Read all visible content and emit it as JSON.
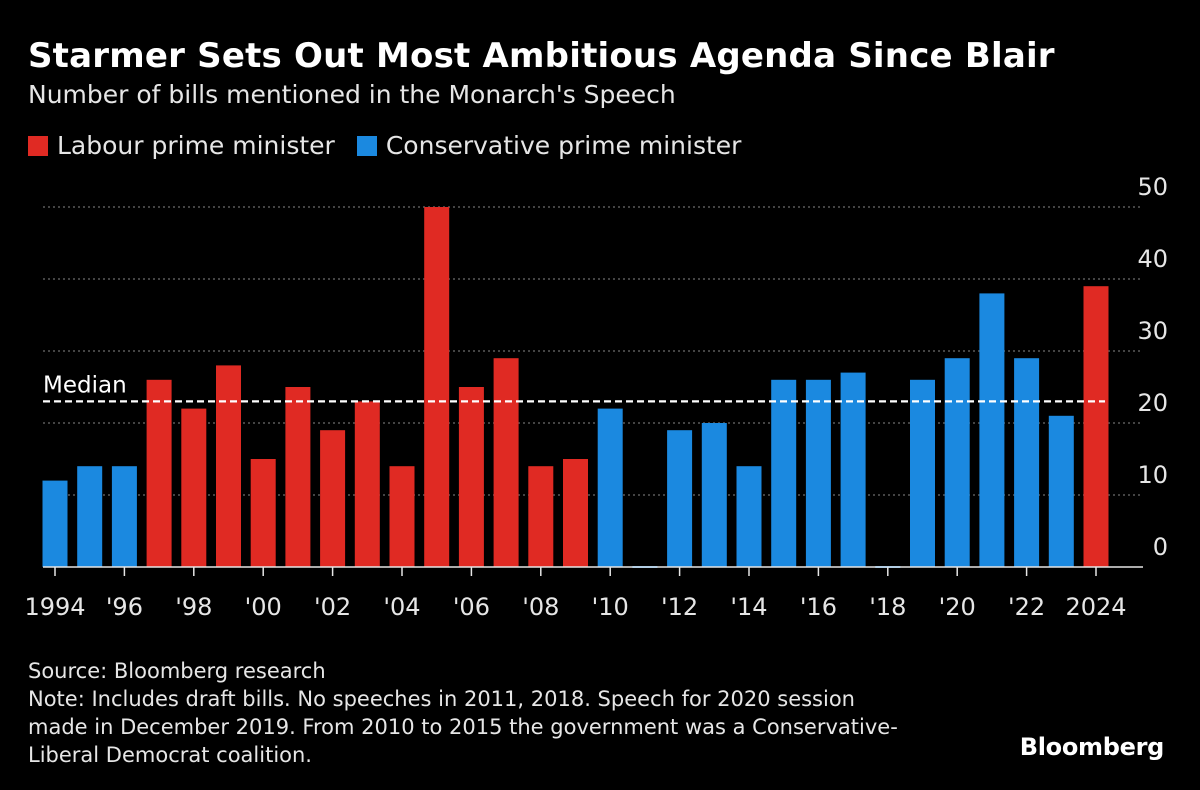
{
  "header": {
    "title": "Starmer Sets Out Most Ambitious Agenda Since Blair",
    "subtitle": "Number of bills mentioned in the Monarch's Speech"
  },
  "legend": [
    {
      "label": "Labour prime minister",
      "color": "#e02a23"
    },
    {
      "label": "Conservative prime minister",
      "color": "#1b89e0"
    }
  ],
  "footer": {
    "source": "Source: Bloomberg research",
    "note_lines": [
      "Note: Includes draft bills. No speeches in 2011, 2018. Speech for 2020 session",
      "made in December 2019. From 2010 to 2015 the government was a Conservative-",
      "Liberal Democrat coalition."
    ]
  },
  "logo": "Bloomberg",
  "chart_data": {
    "type": "bar",
    "x": [
      1994,
      1995,
      1996,
      1997,
      1998,
      1999,
      2000,
      2001,
      2002,
      2003,
      2004,
      2005,
      2006,
      2007,
      2008,
      2009,
      2010,
      2011,
      2012,
      2013,
      2014,
      2015,
      2016,
      2017,
      2018,
      2019,
      2020,
      2021,
      2022,
      2023,
      2024
    ],
    "values": [
      12,
      14,
      14,
      26,
      22,
      28,
      15,
      25,
      19,
      23,
      14,
      50,
      25,
      29,
      14,
      15,
      22,
      0,
      19,
      20,
      14,
      26,
      26,
      27,
      0,
      26,
      29,
      38,
      29,
      21,
      39
    ],
    "party": [
      "C",
      "C",
      "C",
      "L",
      "L",
      "L",
      "L",
      "L",
      "L",
      "L",
      "L",
      "L",
      "L",
      "L",
      "L",
      "L",
      "C",
      "C",
      "C",
      "C",
      "C",
      "C",
      "C",
      "C",
      "C",
      "C",
      "C",
      "C",
      "C",
      "C",
      "L"
    ],
    "colors": {
      "L": "#e02a23",
      "C": "#1b89e0"
    },
    "median": {
      "value": 23,
      "label": "Median"
    },
    "ylim": [
      0,
      50
    ],
    "yticks": [
      0,
      10,
      20,
      30,
      40,
      50
    ],
    "xtick_labels": [
      {
        "year": 1994,
        "label": "1994"
      },
      {
        "year": 1996,
        "label": "'96"
      },
      {
        "year": 1998,
        "label": "'98"
      },
      {
        "year": 2000,
        "label": "'00"
      },
      {
        "year": 2002,
        "label": "'02"
      },
      {
        "year": 2004,
        "label": "'04"
      },
      {
        "year": 2006,
        "label": "'06"
      },
      {
        "year": 2008,
        "label": "'08"
      },
      {
        "year": 2010,
        "label": "'10"
      },
      {
        "year": 2012,
        "label": "'12"
      },
      {
        "year": 2014,
        "label": "'14"
      },
      {
        "year": 2016,
        "label": "'16"
      },
      {
        "year": 2018,
        "label": "'18"
      },
      {
        "year": 2020,
        "label": "'20"
      },
      {
        "year": 2022,
        "label": "'22"
      },
      {
        "year": 2024,
        "label": "2024"
      }
    ],
    "grid": true,
    "yaxis_side": "right",
    "legend_position": "top-left"
  }
}
